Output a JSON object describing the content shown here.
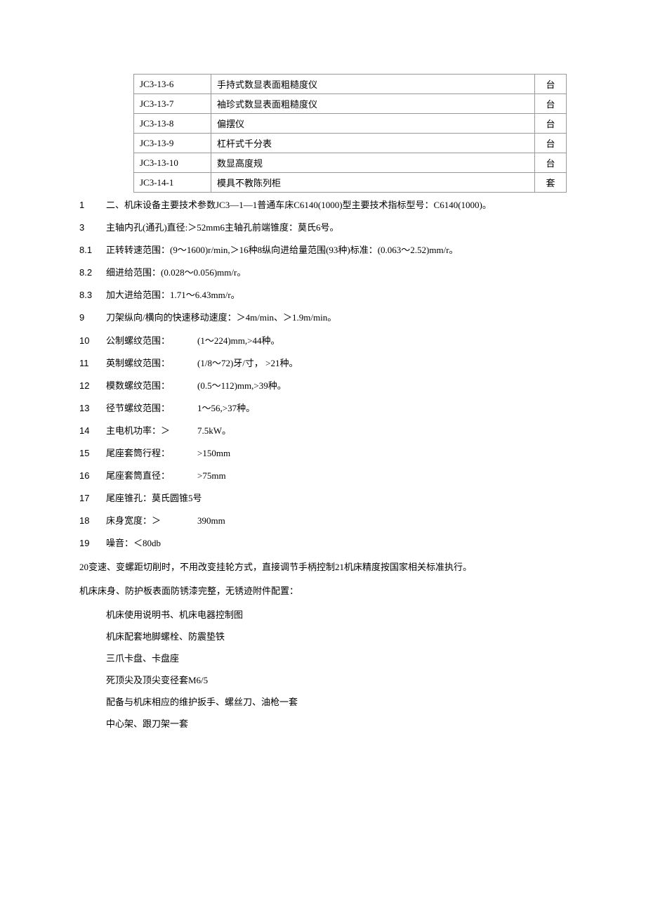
{
  "table": {
    "rows": [
      {
        "code": "JC3-13-6",
        "name": "手持式数显表面粗糙度仪",
        "unit": "台"
      },
      {
        "code": "JC3-13-7",
        "name": "袖珍式数显表面粗糙度仪",
        "unit": "台"
      },
      {
        "code": "JC3-13-8",
        "name": "偏摆仪",
        "unit": "台"
      },
      {
        "code": "JC3-13-9",
        "name": "杠杆式千分表",
        "unit": "台"
      },
      {
        "code": "JC3-13-10",
        "name": "数显高度规",
        "unit": "台"
      },
      {
        "code": "JC3-14-1",
        "name": "模具不教陈列柜",
        "unit": "套"
      }
    ]
  },
  "specs": [
    {
      "num": "1",
      "text": "二、机床设备主要技术参数JC3—1—1普通车床C6140(1000)型主要技术指标型号：C6140(1000)。"
    },
    {
      "num": "3",
      "text": "主轴内孔(通孔)直径:＞52mm6主轴孔前端锥度：莫氏6号。"
    },
    {
      "num": "8.1",
      "text": "正转转速范围：(9〜1600)r/min,＞16种8纵向进给量范围(93种)标准：(0.063〜2.52)mm/r。"
    },
    {
      "num": "8.2",
      "text": "细进给范围：(0.028〜0.056)mm/r。"
    },
    {
      "num": "8.3",
      "text": "加大进给范围：1.71〜6.43mm/r。"
    },
    {
      "num": "9",
      "text": "刀架纵向/横向的快速移动速度：＞4m/min、＞1.9m/min。"
    }
  ],
  "threadSpecs": [
    {
      "num": "10",
      "label": "公制螺纹范围：",
      "value": "(1〜224)mm,>44种。"
    },
    {
      "num": "11",
      "label": "英制螺纹范围：",
      "value": "(1/8〜72)牙/寸， >21种。"
    },
    {
      "num": "12",
      "label": "模数螺纹范围：",
      "value": "(0.5〜112)mm,>39种。"
    },
    {
      "num": "13",
      "label": "径节螺纹范围：",
      "value": "1〜56,>37种。"
    }
  ],
  "simpleSpecs": [
    {
      "num": "14",
      "label": "主电机功率：＞",
      "value": "7.5kW。"
    },
    {
      "num": "15",
      "label": "尾座套筒行程：",
      "value": ">150mm"
    },
    {
      "num": "16",
      "label": "尾座套筒直径：",
      "value": ">75mm"
    },
    {
      "num": "17",
      "label": "尾座锥孔：莫氏圆锥5号",
      "value": ""
    },
    {
      "num": "18",
      "label": "床身宽度：＞",
      "value": "390mm"
    },
    {
      "num": "19",
      "label": "噪音：＜80db",
      "value": ""
    }
  ],
  "paragraph20": "20变速、变螺距切削时，不用改变挂轮方式，直接调节手柄控制21机床精度按国家相关标准执行。",
  "attachHeader": "机床床身、防护板表面防锈漆完整，无锈迹附件配置：",
  "attachments": [
    "机床使用说明书、机床电器控制图",
    "机床配套地脚螺栓、防震垫铁",
    "三爪卡盘、卡盘座",
    "死顶尖及顶尖变径套M6/5",
    "配备与机床相应的维护扳手、螺丝刀、油枪一套",
    "中心架、跟刀架一套"
  ]
}
